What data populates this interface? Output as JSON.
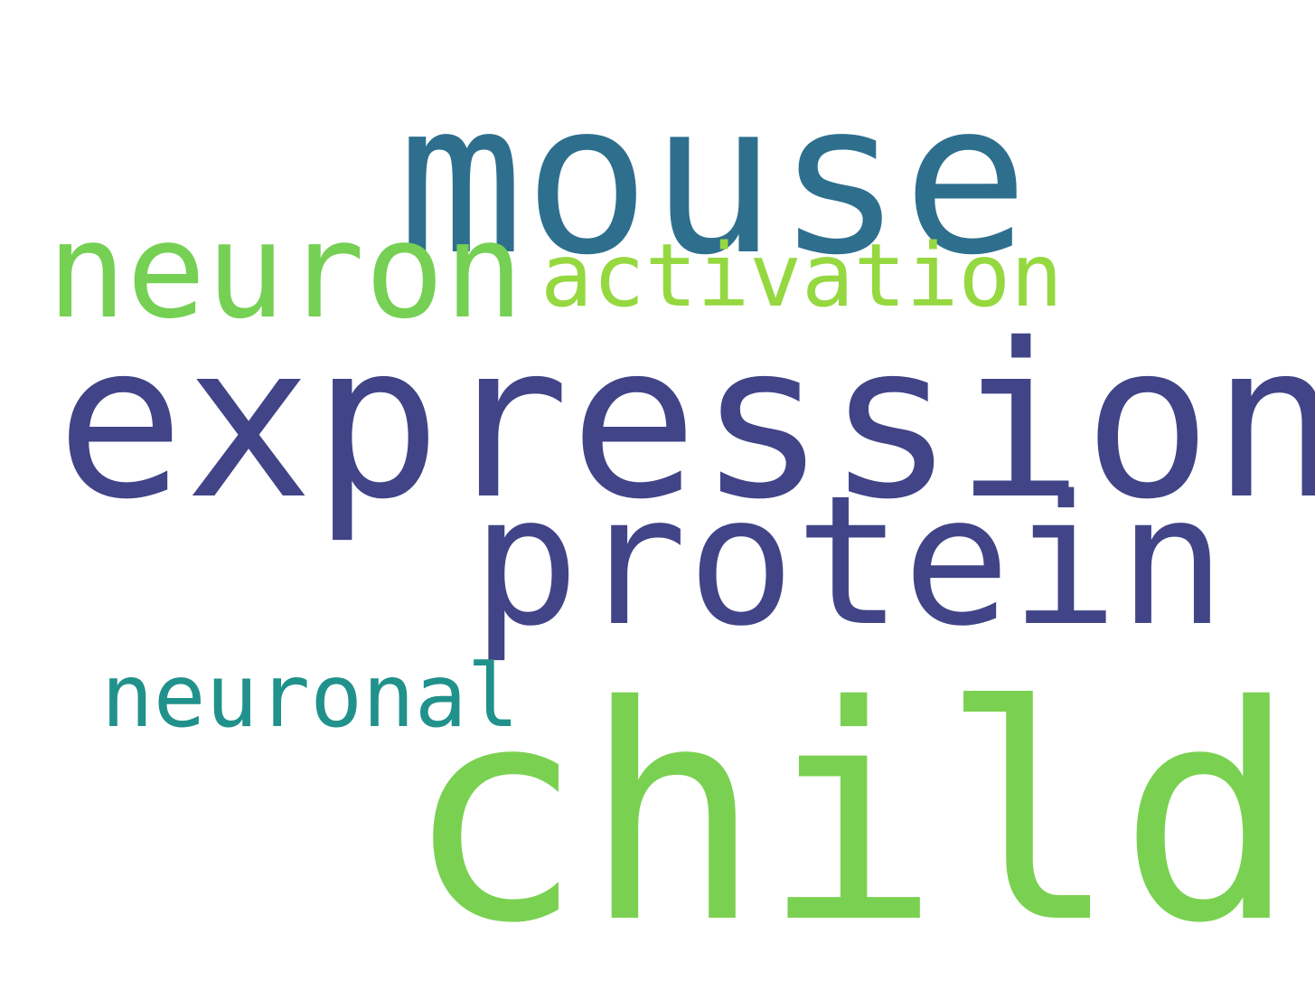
{
  "words": [
    {
      "text": "mouse",
      "color": "#2e6f8e"
    },
    {
      "text": "neuron",
      "color": "#75d054"
    },
    {
      "text": "activation",
      "color": "#95d840"
    },
    {
      "text": "expression",
      "color": "#414487"
    },
    {
      "text": "protein",
      "color": "#414487"
    },
    {
      "text": "neuronal",
      "color": "#21918c"
    },
    {
      "text": "child",
      "color": "#7ad151"
    }
  ]
}
